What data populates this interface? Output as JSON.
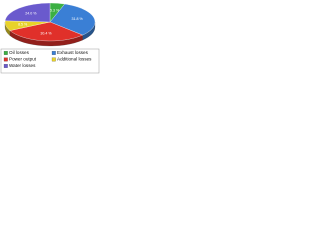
{
  "chart_data": {
    "type": "pie",
    "categories": [
      "Oil losses",
      "Exhaust losses",
      "Power output",
      "Additional losses",
      "Water losses"
    ],
    "values": [
      5.3,
      31.8,
      30.4,
      8.5,
      24.0
    ],
    "value_labels": [
      "5.3 %",
      "31.8 %",
      "30.4 %",
      "8.5 %",
      "24.0 %"
    ],
    "colors": [
      "#3cb043",
      "#3a7fd5",
      "#e0302a",
      "#e8d22a",
      "#6a5acd"
    ]
  }
}
